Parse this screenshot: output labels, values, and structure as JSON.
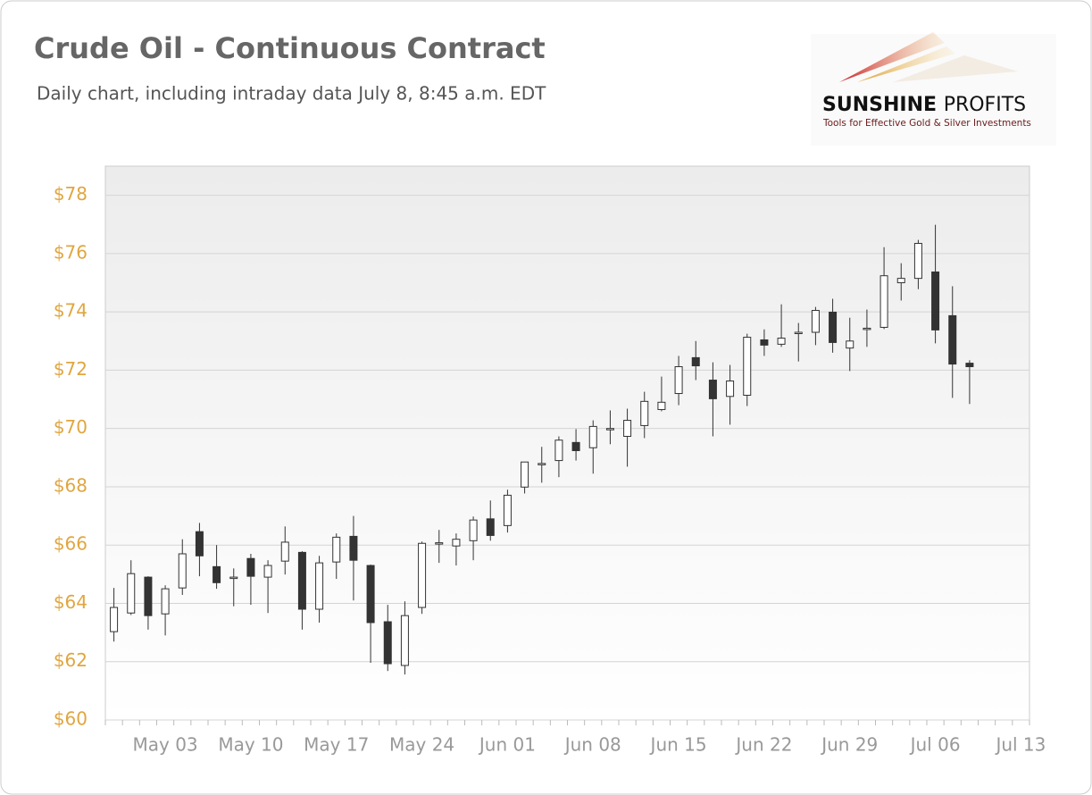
{
  "chart_data": {
    "type": "candlestick",
    "title": "Crude Oil - Continuous Contract",
    "subtitle": "Daily chart, including intraday data July 8, 8:45 a.m. EDT",
    "logo": {
      "name_bold": "SUNSHINE",
      "name_light": "PROFITS",
      "tagline": "Tools for Effective Gold & Silver Investments"
    },
    "categories": [
      null,
      null,
      null,
      "May 03",
      null,
      null,
      null,
      null,
      "May 10",
      null,
      null,
      null,
      null,
      "May 17",
      null,
      null,
      null,
      null,
      "May 24",
      null,
      null,
      null,
      null,
      "Jun 01",
      null,
      null,
      null,
      null,
      "Jun 08",
      null,
      null,
      null,
      null,
      "Jun 15",
      null,
      null,
      null,
      null,
      "Jun 22",
      null,
      null,
      null,
      null,
      "Jun 29",
      null,
      null,
      null,
      null,
      "Jul 06",
      null,
      null,
      null,
      null,
      "Jul 13"
    ],
    "open": [
      63.03,
      63.67,
      64.9,
      63.64,
      64.53,
      66.46,
      65.26,
      64.88,
      65.54,
      64.9,
      65.45,
      65.75,
      63.8,
      65.42,
      66.3,
      65.3,
      63.37,
      61.87,
      63.86,
      66.04,
      65.97,
      66.15,
      66.9,
      66.67,
      67.99,
      68.76,
      68.9,
      69.52,
      69.34,
      69.97,
      69.73,
      70.1,
      70.65,
      71.2,
      72.43,
      71.66,
      71.1,
      71.14,
      73.04,
      72.89,
      73.27,
      73.3,
      73.99,
      72.76,
      73.41,
      73.47,
      75.0,
      75.15,
      75.37,
      73.87,
      72.24,
      null,
      null,
      null
    ],
    "high": [
      64.53,
      65.48,
      64.93,
      64.62,
      66.2,
      66.76,
      66.0,
      65.2,
      65.7,
      65.48,
      66.64,
      65.79,
      65.63,
      66.4,
      67.0,
      65.33,
      63.95,
      64.07,
      66.12,
      66.52,
      66.4,
      66.98,
      67.53,
      67.9,
      68.85,
      69.37,
      69.73,
      69.98,
      70.28,
      70.62,
      70.68,
      71.26,
      71.78,
      72.49,
      73.0,
      72.27,
      72.18,
      73.25,
      73.4,
      74.26,
      73.62,
      74.17,
      74.45,
      73.8,
      74.08,
      76.22,
      75.67,
      76.47,
      76.99,
      74.88,
      72.34,
      null,
      null,
      null
    ],
    "low": [
      62.69,
      63.6,
      63.1,
      62.9,
      64.29,
      64.93,
      64.5,
      63.9,
      63.95,
      63.67,
      64.99,
      63.1,
      63.34,
      64.84,
      64.1,
      61.96,
      61.68,
      61.56,
      63.64,
      65.39,
      65.3,
      65.48,
      66.15,
      66.43,
      67.77,
      68.14,
      68.33,
      68.9,
      68.45,
      69.46,
      68.69,
      69.67,
      70.59,
      70.8,
      71.66,
      69.73,
      70.13,
      70.77,
      72.49,
      72.8,
      72.3,
      72.86,
      72.6,
      71.97,
      72.8,
      73.41,
      74.39,
      74.78,
      72.92,
      71.05,
      70.84,
      null,
      null,
      null
    ],
    "close": [
      63.86,
      65.02,
      63.58,
      64.5,
      65.7,
      65.63,
      64.71,
      64.9,
      64.93,
      65.3,
      66.1,
      63.8,
      65.39,
      66.27,
      65.48,
      63.34,
      61.93,
      63.58,
      66.06,
      66.08,
      66.2,
      66.86,
      66.33,
      67.71,
      68.85,
      68.8,
      69.6,
      69.24,
      70.07,
      70.0,
      70.28,
      70.93,
      70.9,
      72.12,
      72.15,
      71.02,
      71.63,
      73.13,
      72.86,
      73.1,
      73.3,
      74.05,
      72.95,
      73.0,
      73.44,
      75.24,
      75.15,
      76.35,
      73.38,
      72.21,
      72.12,
      null,
      null,
      null
    ],
    "up_color": "#ffffff",
    "down_color": "#333333",
    "ylim": [
      60,
      79
    ],
    "yticks": [
      {
        "value": 60,
        "label": "$60"
      },
      {
        "value": 62,
        "label": "$62"
      },
      {
        "value": 64,
        "label": "$64"
      },
      {
        "value": 66,
        "label": "$66"
      },
      {
        "value": 68,
        "label": "$68"
      },
      {
        "value": 70,
        "label": "$70"
      },
      {
        "value": 72,
        "label": "$72"
      },
      {
        "value": 74,
        "label": "$74"
      },
      {
        "value": 76,
        "label": "$76"
      },
      {
        "value": 78,
        "label": "$78"
      }
    ],
    "grid": true
  }
}
